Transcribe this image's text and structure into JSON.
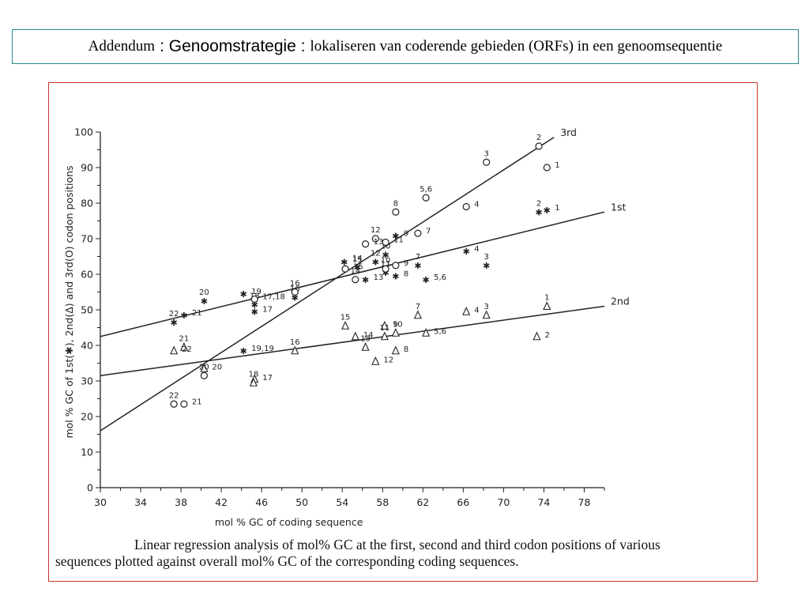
{
  "header": {
    "part1": "Addendum",
    "part2": ": Genoomstrategie :",
    "part3": "lokaliseren van coderende gebieden (ORFs) in een genoomsequentie"
  },
  "caption": {
    "line1": "Linear regression analysis of mol% GC at the first, second and third codon positions of various",
    "line2": "sequences plotted against overall mol% GC of the corresponding coding sequences."
  },
  "chart_data": {
    "type": "scatter",
    "xlabel": "mol % GC of coding sequence",
    "ylabel": "mol % GC of 1st(✱), 2nd(Δ) and 3rd(O) codon positions",
    "xlim": [
      30,
      80
    ],
    "ylim": [
      0,
      100
    ],
    "x_ticks": [
      30,
      34,
      38,
      42,
      46,
      50,
      54,
      58,
      62,
      66,
      70,
      74,
      78
    ],
    "y_ticks": [
      0,
      10,
      20,
      30,
      40,
      50,
      60,
      70,
      80,
      90,
      100
    ],
    "grid": false,
    "series": [
      {
        "name": "1st",
        "marker": "star",
        "line": {
          "x": [
            30,
            80
          ],
          "y": [
            42.5,
            77.5
          ]
        },
        "points": [
          {
            "x": 73.5,
            "y": 77.5,
            "label": "2"
          },
          {
            "x": 74.3,
            "y": 78.0,
            "label": "1"
          },
          {
            "x": 68.3,
            "y": 62.5,
            "label": "3"
          },
          {
            "x": 66.3,
            "y": 66.5,
            "label": "4"
          },
          {
            "x": 61.5,
            "y": 62.5,
            "label": "7"
          },
          {
            "x": 62.3,
            "y": 58.5,
            "label": "5,6"
          },
          {
            "x": 58.3,
            "y": 65.5,
            "label": "10"
          },
          {
            "x": 59.3,
            "y": 70.8,
            "label": "9"
          },
          {
            "x": 57.3,
            "y": 63.5,
            "label": "12"
          },
          {
            "x": 56.3,
            "y": 58.5,
            "label": "13"
          },
          {
            "x": 55.5,
            "y": 62.0,
            "label": "14"
          },
          {
            "x": 54.2,
            "y": 63.5,
            "label": "15"
          },
          {
            "x": 58.3,
            "y": 60.5,
            "label": "11"
          },
          {
            "x": 59.3,
            "y": 59.5,
            "label": "8"
          },
          {
            "x": 49.3,
            "y": 53.5,
            "label": "16"
          },
          {
            "x": 45.3,
            "y": 49.5,
            "label": "17"
          },
          {
            "x": 45.3,
            "y": 51.5,
            "label": "18"
          },
          {
            "x": 44.2,
            "y": 54.5,
            "label": "19"
          },
          {
            "x": 40.3,
            "y": 52.5,
            "label": "20"
          },
          {
            "x": 38.3,
            "y": 48.5,
            "label": "21"
          },
          {
            "x": 37.3,
            "y": 46.5,
            "label": "22"
          },
          {
            "x": 44.2,
            "y": 38.5,
            "label": "19,19"
          }
        ]
      },
      {
        "name": "2nd",
        "marker": "triangle",
        "line": {
          "x": [
            30,
            80
          ],
          "y": [
            31.5,
            51.0
          ]
        },
        "points": [
          {
            "x": 74.3,
            "y": 51.0,
            "label": "1"
          },
          {
            "x": 73.3,
            "y": 42.5,
            "label": "2"
          },
          {
            "x": 68.3,
            "y": 48.5,
            "label": "3"
          },
          {
            "x": 66.3,
            "y": 49.5,
            "label": "4"
          },
          {
            "x": 61.5,
            "y": 48.5,
            "label": "7"
          },
          {
            "x": 62.3,
            "y": 43.5,
            "label": "5,6"
          },
          {
            "x": 59.3,
            "y": 43.5,
            "label": "9"
          },
          {
            "x": 58.2,
            "y": 45.5,
            "label": "10"
          },
          {
            "x": 58.2,
            "y": 42.5,
            "label": "11"
          },
          {
            "x": 57.3,
            "y": 35.5,
            "label": "12"
          },
          {
            "x": 56.3,
            "y": 39.5,
            "label": "13"
          },
          {
            "x": 55.3,
            "y": 42.5,
            "label": "14"
          },
          {
            "x": 54.3,
            "y": 45.5,
            "label": "15"
          },
          {
            "x": 59.3,
            "y": 38.5,
            "label": "8"
          },
          {
            "x": 49.3,
            "y": 38.5,
            "label": "16"
          },
          {
            "x": 45.3,
            "y": 30.5,
            "label": "17"
          },
          {
            "x": 45.2,
            "y": 29.5,
            "label": "18"
          },
          {
            "x": 40.3,
            "y": 33.5,
            "label": "20"
          },
          {
            "x": 38.3,
            "y": 39.5,
            "label": "21"
          },
          {
            "x": 37.3,
            "y": 38.5,
            "label": "22"
          }
        ]
      },
      {
        "name": "3rd",
        "marker": "circle",
        "line": {
          "x": [
            30,
            75
          ],
          "y": [
            16.0,
            98.5
          ]
        },
        "points": [
          {
            "x": 73.5,
            "y": 96.0,
            "label": "2"
          },
          {
            "x": 74.3,
            "y": 90.0,
            "label": "1"
          },
          {
            "x": 68.3,
            "y": 91.5,
            "label": "3"
          },
          {
            "x": 66.3,
            "y": 79.0,
            "label": "4"
          },
          {
            "x": 62.3,
            "y": 81.5,
            "label": "5,6"
          },
          {
            "x": 61.5,
            "y": 71.5,
            "label": "7"
          },
          {
            "x": 59.3,
            "y": 77.5,
            "label": "8"
          },
          {
            "x": 59.3,
            "y": 62.5,
            "label": "9"
          },
          {
            "x": 58.3,
            "y": 61.5,
            "label": "10"
          },
          {
            "x": 58.3,
            "y": 69.0,
            "label": "11"
          },
          {
            "x": 57.3,
            "y": 70.0,
            "label": "12"
          },
          {
            "x": 56.3,
            "y": 68.5,
            "label": "13"
          },
          {
            "x": 55.3,
            "y": 58.5,
            "label": "14"
          },
          {
            "x": 54.3,
            "y": 61.5,
            "label": "15"
          },
          {
            "x": 49.3,
            "y": 55.0,
            "label": "16"
          },
          {
            "x": 45.3,
            "y": 53.0,
            "label": "17,18"
          },
          {
            "x": 40.3,
            "y": 31.5,
            "label": "20"
          },
          {
            "x": 38.3,
            "y": 23.5,
            "label": "21"
          },
          {
            "x": 37.3,
            "y": 23.5,
            "label": "22"
          }
        ]
      }
    ]
  }
}
